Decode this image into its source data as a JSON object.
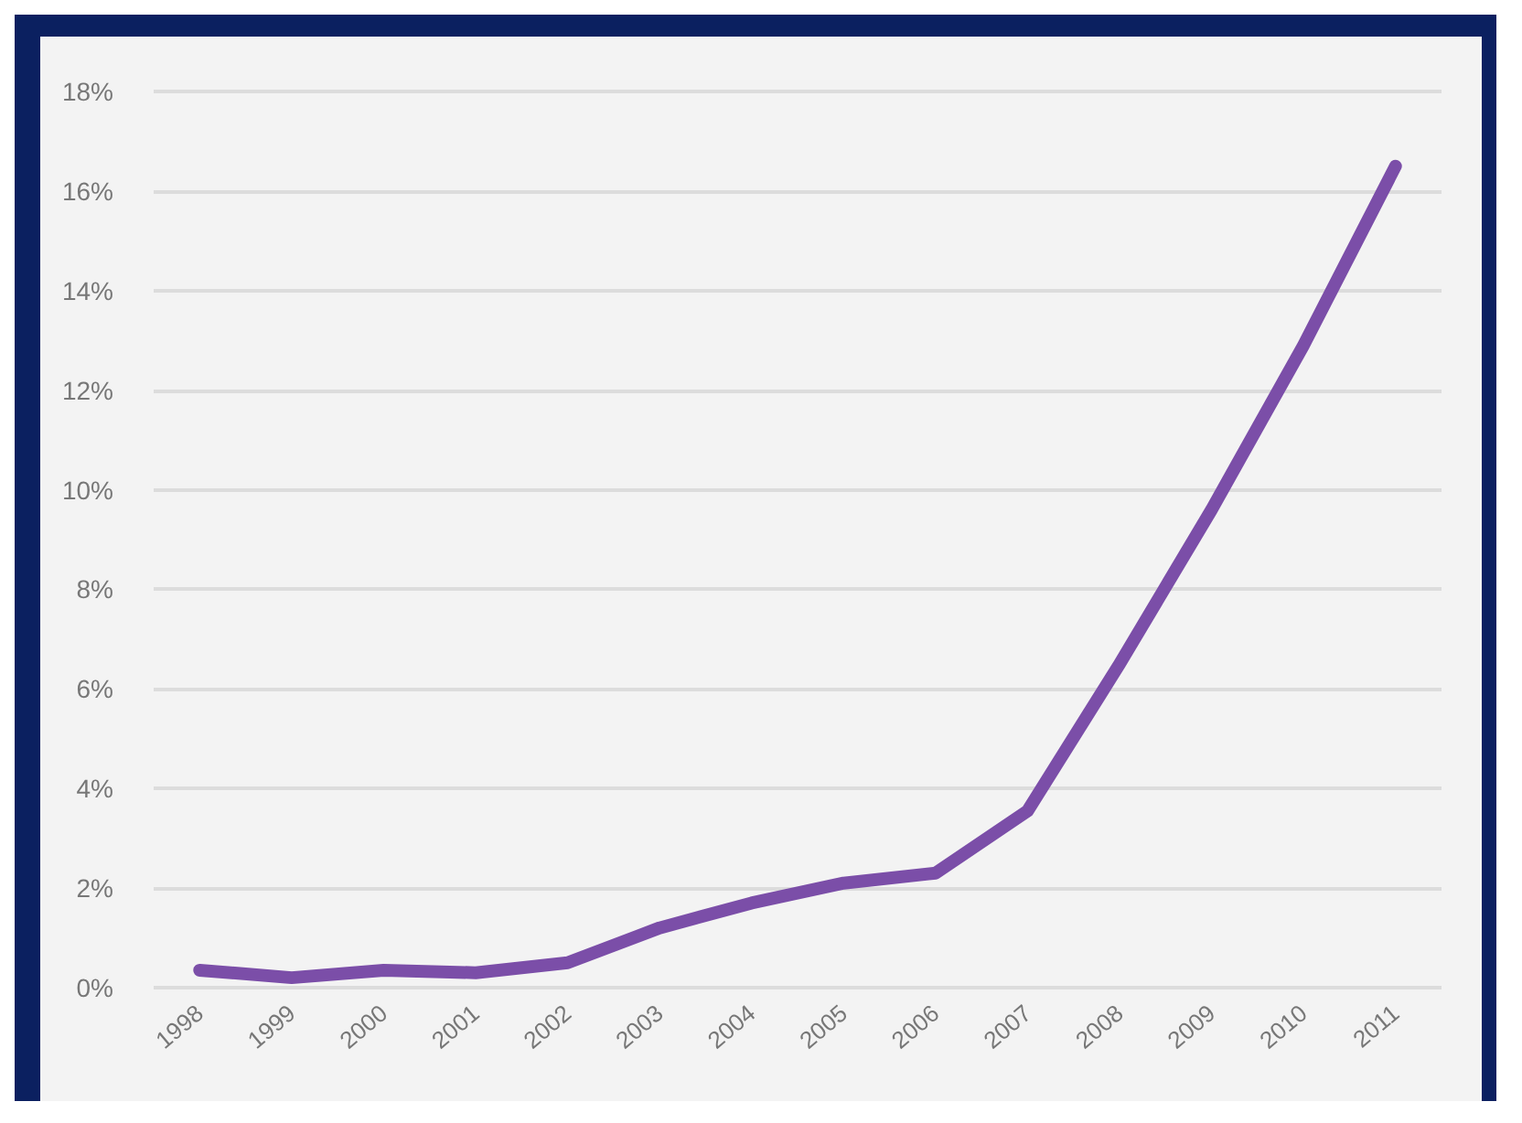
{
  "chart_data": {
    "type": "line",
    "categories": [
      "1998",
      "1999",
      "2000",
      "2001",
      "2002",
      "2003",
      "2004",
      "2005",
      "2006",
      "2007",
      "2008",
      "2009",
      "2010",
      "2011"
    ],
    "series": [
      {
        "color": "#7b4ea8",
        "values": [
          0.35,
          0.2,
          0.35,
          0.3,
          0.5,
          1.2,
          1.7,
          2.1,
          2.3,
          3.55,
          6.5,
          9.6,
          12.9,
          16.5
        ]
      }
    ],
    "ylim": [
      0,
      18
    ],
    "yticks": [
      {
        "value": 0,
        "label": "0%"
      },
      {
        "value": 2,
        "label": "2%"
      },
      {
        "value": 4,
        "label": "4%"
      },
      {
        "value": 6,
        "label": "6%"
      },
      {
        "value": 8,
        "label": "8%"
      },
      {
        "value": 10,
        "label": "10%"
      },
      {
        "value": 12,
        "label": "12%"
      },
      {
        "value": 14,
        "label": "14%"
      },
      {
        "value": 16,
        "label": "16%"
      },
      {
        "value": 18,
        "label": "18%"
      }
    ],
    "grid": "y",
    "marker": "none",
    "line_style": "solid"
  }
}
